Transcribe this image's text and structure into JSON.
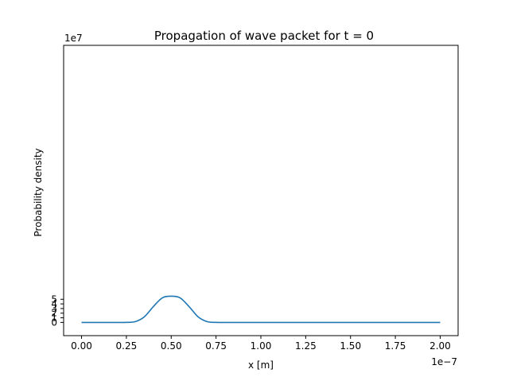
{
  "chart_data": {
    "type": "line",
    "title": "Propagation of wave packet for t = 0",
    "xlabel": "x [m]",
    "ylabel": "Probability density",
    "x_offset_text": "1e−7",
    "y_offset_text": "1e7",
    "xlim": [
      -1e-08,
      2.1e-07
    ],
    "ylim": [
      -28500000.0,
      598000000.0
    ],
    "xlim_note": "data units (meters)",
    "x_ticks": [
      0.0,
      2.5e-08,
      5e-08,
      7.5e-08,
      1e-07,
      1.25e-07,
      1.5e-07,
      1.75e-07,
      2e-07
    ],
    "x_tick_labels": [
      "0.00",
      "0.25",
      "0.50",
      "0.75",
      "1.00",
      "1.25",
      "1.50",
      "1.75",
      "2.00"
    ],
    "y_ticks": [
      0,
      10000000.0,
      20000000.0,
      30000000.0,
      40000000.0,
      50000000.0
    ],
    "y_tick_labels": [
      "0",
      "1",
      "2",
      "3",
      "4",
      "5"
    ],
    "grid": false,
    "legend": "none",
    "series": [
      {
        "color": "#1f77b4",
        "x": [
          0.0,
          1e-08,
          2e-08,
          2.5e-08,
          3e-08,
          3.5e-08,
          4e-08,
          4.5e-08,
          5e-08,
          5.5e-08,
          6e-08,
          6.5e-08,
          7e-08,
          7.5e-08,
          8e-08,
          9e-08,
          1e-07,
          1.5e-07,
          2e-07
        ],
        "y": [
          0,
          0,
          1000.0,
          100000.0,
          1800000.0,
          12000000.0,
          34000000.0,
          53000000.0,
          56500000.0,
          53000000.0,
          34000000.0,
          12000000.0,
          1800000.0,
          100000.0,
          1000.0,
          0,
          0,
          0,
          0
        ]
      }
    ]
  }
}
